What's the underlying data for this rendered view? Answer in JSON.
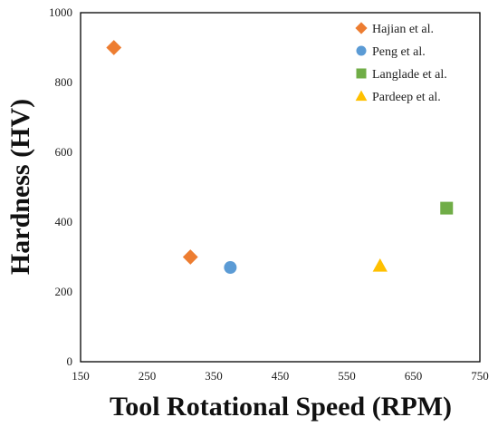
{
  "chart_data": {
    "type": "scatter",
    "xlabel": "Tool Rotational Speed (RPM)",
    "ylabel": "Hardness (HV)",
    "xlim": [
      150,
      750
    ],
    "ylim": [
      0,
      1000
    ],
    "xticks": [
      "150",
      "250",
      "350",
      "450",
      "550",
      "650",
      "750"
    ],
    "yticks": [
      "0",
      "200",
      "400",
      "600",
      "800",
      "1000"
    ],
    "grid": false,
    "legend_position": "top-right",
    "series": [
      {
        "name": "Hajian et al.",
        "marker": "diamond",
        "color": "#ED7D31",
        "points": [
          {
            "x": 200,
            "y": 900
          },
          {
            "x": 315,
            "y": 300
          }
        ]
      },
      {
        "name": "Peng et al.",
        "marker": "circle",
        "color": "#5B9BD5",
        "points": [
          {
            "x": 375,
            "y": 270
          }
        ]
      },
      {
        "name": "Langlade et al.",
        "marker": "square",
        "color": "#70AD47",
        "points": [
          {
            "x": 700,
            "y": 440
          }
        ]
      },
      {
        "name": "Pardeep et al.",
        "marker": "triangle",
        "color": "#FFC000",
        "points": [
          {
            "x": 600,
            "y": 275
          }
        ]
      }
    ]
  }
}
